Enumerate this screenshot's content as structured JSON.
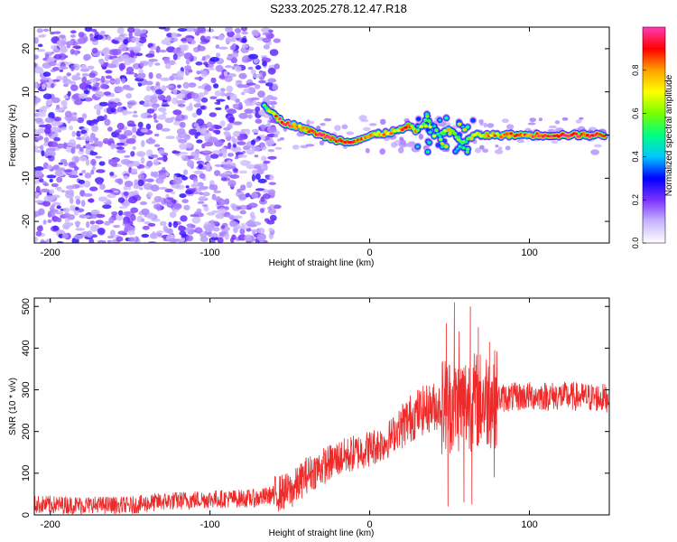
{
  "title": "S233.2025.278.12.47.R18",
  "chart_data": [
    {
      "type": "heatmap",
      "name": "spectrogram",
      "xlabel": "Height of straight line (km)",
      "ylabel": "Frequency (Hz)",
      "xlim": [
        -210,
        150
      ],
      "ylim": [
        -25,
        25
      ],
      "xticks": [
        -200,
        -100,
        0,
        100
      ],
      "yticks": [
        -20,
        -10,
        0,
        10,
        20
      ],
      "noise_region_x": [
        -210,
        -58
      ],
      "ridge": [
        {
          "x": -66,
          "y": 7,
          "a": 0.55
        },
        {
          "x": -55,
          "y": 3,
          "a": 0.95
        },
        {
          "x": -45,
          "y": 2,
          "a": 0.8
        },
        {
          "x": -38,
          "y": 1,
          "a": 0.85
        },
        {
          "x": -30,
          "y": 0,
          "a": 0.95
        },
        {
          "x": -22,
          "y": -1,
          "a": 0.9
        },
        {
          "x": -14,
          "y": -1.5,
          "a": 0.85
        },
        {
          "x": -6,
          "y": -1,
          "a": 0.8
        },
        {
          "x": 2,
          "y": 0,
          "a": 0.75
        },
        {
          "x": 10,
          "y": 0.5,
          "a": 0.8
        },
        {
          "x": 18,
          "y": 1,
          "a": 0.7
        },
        {
          "x": 24,
          "y": 2,
          "a": 0.85
        },
        {
          "x": 30,
          "y": 1,
          "a": 0.7
        },
        {
          "x": 36,
          "y": 4,
          "a": 0.55
        },
        {
          "x": 44,
          "y": 0,
          "a": 0.5
        },
        {
          "x": 52,
          "y": 1,
          "a": 0.6
        },
        {
          "x": 58,
          "y": -2,
          "a": 0.5
        },
        {
          "x": 66,
          "y": 0,
          "a": 0.7
        },
        {
          "x": 76,
          "y": 0,
          "a": 0.75
        },
        {
          "x": 86,
          "y": 0,
          "a": 0.8
        },
        {
          "x": 96,
          "y": 0,
          "a": 0.85
        },
        {
          "x": 106,
          "y": 0,
          "a": 0.9
        },
        {
          "x": 116,
          "y": 0,
          "a": 0.95
        },
        {
          "x": 128,
          "y": 0,
          "a": 0.95
        },
        {
          "x": 140,
          "y": 0,
          "a": 0.9
        },
        {
          "x": 148,
          "y": 0,
          "a": 0.85
        }
      ],
      "colorbar": {
        "label": "Normalized spectral amplitude",
        "range": [
          0,
          1
        ],
        "ticks": [
          "0.0",
          "0.2",
          "0.4",
          "0.6",
          "0.8"
        ],
        "tick_values": [
          0,
          0.2,
          0.4,
          0.6,
          0.8
        ],
        "colors": [
          "#ffffff",
          "#c8b4ff",
          "#7a32ff",
          "#0000ff",
          "#00c8ff",
          "#00ff80",
          "#78ff00",
          "#ffff00",
          "#ffa000",
          "#ff0000",
          "#ff3cb4"
        ]
      }
    },
    {
      "type": "line",
      "name": "snr",
      "xlabel": "Height of straight line (km)",
      "ylabel": "SNR (10 * v/v)",
      "xlim": [
        -210,
        150
      ],
      "ylim": [
        0,
        520
      ],
      "xticks": [
        -200,
        -100,
        0,
        100
      ],
      "yticks": [
        0,
        100,
        200,
        300,
        400,
        500
      ],
      "color": "#ee2a2a",
      "baseline": [
        {
          "x": -210,
          "y": 25
        },
        {
          "x": -150,
          "y": 22
        },
        {
          "x": -130,
          "y": 32
        },
        {
          "x": -100,
          "y": 38
        },
        {
          "x": -70,
          "y": 40
        },
        {
          "x": -48,
          "y": 60
        },
        {
          "x": -40,
          "y": 95
        },
        {
          "x": -20,
          "y": 135
        },
        {
          "x": 0,
          "y": 160
        },
        {
          "x": 10,
          "y": 175
        },
        {
          "x": 20,
          "y": 215
        },
        {
          "x": 30,
          "y": 245
        },
        {
          "x": 40,
          "y": 260
        },
        {
          "x": 50,
          "y": 265
        },
        {
          "x": 60,
          "y": 270
        },
        {
          "x": 70,
          "y": 275
        },
        {
          "x": 80,
          "y": 280
        },
        {
          "x": 100,
          "y": 285
        },
        {
          "x": 120,
          "y": 285
        },
        {
          "x": 150,
          "y": 280
        }
      ],
      "spikes": [
        {
          "x": 48,
          "y": 460
        },
        {
          "x": 49,
          "y": 20
        },
        {
          "x": 53,
          "y": 510
        },
        {
          "x": 56,
          "y": 440
        },
        {
          "x": 59,
          "y": 30
        },
        {
          "x": 63,
          "y": 500
        },
        {
          "x": 64,
          "y": 25
        },
        {
          "x": 68,
          "y": 450
        },
        {
          "x": 75,
          "y": 415
        },
        {
          "x": 78,
          "y": 90
        }
      ]
    }
  ]
}
